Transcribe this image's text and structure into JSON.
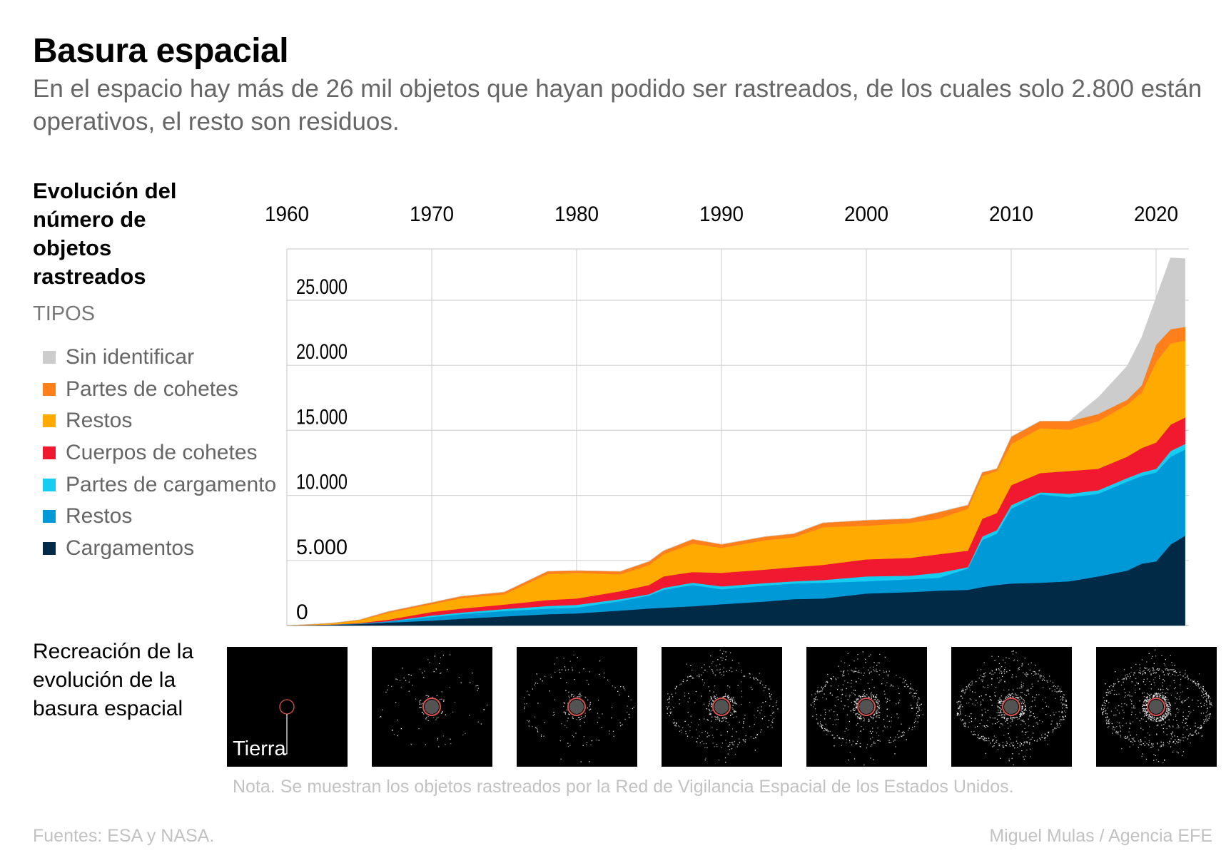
{
  "header": {
    "title": "Basura espacial",
    "subtitle": "En el espacio hay más de 26 mil objetos que hayan podido ser rastreados, de los cuales solo 2.800 están operativos, el resto son residuos."
  },
  "side": {
    "title_lines": [
      "Evolución del",
      "número de",
      "objetos",
      "rastreados"
    ],
    "legend_heading": "TIPOS"
  },
  "chart_data": {
    "type": "area",
    "stacked": true,
    "title": "Evolución del número de objetos rastreados",
    "xlabel": "",
    "ylabel": "",
    "xlim": [
      1960,
      2022
    ],
    "ylim": [
      0,
      28900
    ],
    "x_ticks": [
      1960,
      1970,
      1980,
      1990,
      2000,
      2010,
      2020
    ],
    "x_tick_labels": [
      "1960",
      "1970",
      "1980",
      "1990",
      "2000",
      "2010",
      "2020"
    ],
    "x_axis_position": "top",
    "y_ticks": [
      0,
      5000,
      10000,
      15000,
      20000,
      25000
    ],
    "y_tick_labels": [
      "0",
      "5.000",
      "10.000",
      "15.000",
      "20.000",
      "25.000"
    ],
    "grid": true,
    "legend_position": "left",
    "x": [
      1960,
      1963,
      1965,
      1967,
      1970,
      1972,
      1975,
      1978,
      1980,
      1983,
      1985,
      1986,
      1988,
      1990,
      1993,
      1995,
      1997,
      2000,
      2003,
      2005,
      2007,
      2008,
      2009,
      2010,
      2012,
      2014,
      2016,
      2018,
      2019,
      2020,
      2021,
      2022
    ],
    "series": [
      {
        "name": "Cargamentos",
        "color": "#002a45",
        "values": [
          0,
          50,
          120,
          230,
          380,
          520,
          700,
          870,
          930,
          1150,
          1310,
          1370,
          1480,
          1640,
          1850,
          2030,
          2080,
          2460,
          2570,
          2680,
          2740,
          2960,
          3120,
          3230,
          3290,
          3400,
          3780,
          4220,
          4760,
          4930,
          6240,
          6900
        ]
      },
      {
        "name": "Restos",
        "color": "#0099d8",
        "values": [
          0,
          10,
          30,
          80,
          270,
          350,
          420,
          430,
          440,
          730,
          990,
          1370,
          1640,
          1150,
          1230,
          1200,
          1210,
          940,
          990,
          990,
          1640,
          3610,
          3940,
          5750,
          6790,
          6460,
          6350,
          6840,
          6740,
          6840,
          6740,
          6630
        ]
      },
      {
        "name": "Partes de cargamento",
        "color": "#14cdf0",
        "values": [
          0,
          5,
          10,
          20,
          120,
          130,
          150,
          200,
          220,
          150,
          110,
          160,
          170,
          220,
          180,
          170,
          210,
          380,
          270,
          380,
          110,
          270,
          280,
          280,
          160,
          270,
          270,
          280,
          270,
          280,
          440,
          430
        ]
      },
      {
        "name": "Cuerpos de cohetes",
        "color": "#f0192f",
        "values": [
          0,
          10,
          40,
          120,
          270,
          300,
          340,
          460,
          490,
          600,
          710,
          880,
          820,
          1040,
          1040,
          1090,
          1160,
          1310,
          1370,
          1430,
          1260,
          1370,
          1310,
          1530,
          1480,
          1750,
          1650,
          1640,
          1870,
          2020,
          2020,
          2030
        ]
      },
      {
        "name": "Restos",
        "color": "#ffaa00",
        "values": [
          0,
          80,
          200,
          530,
          600,
          800,
          790,
          2000,
          1970,
          1300,
          1540,
          1700,
          2190,
          1920,
          2260,
          2300,
          2900,
          2580,
          2690,
          2730,
          3230,
          3290,
          3230,
          3170,
          3450,
          3180,
          3670,
          4000,
          4270,
          6190,
          6250,
          5910
        ]
      },
      {
        "name": "Partes de cohetes",
        "color": "#ff7f1a",
        "values": [
          0,
          20,
          40,
          100,
          130,
          150,
          170,
          210,
          170,
          230,
          270,
          270,
          330,
          270,
          270,
          270,
          330,
          430,
          320,
          500,
          280,
          270,
          170,
          550,
          550,
          660,
          540,
          380,
          550,
          1320,
          1090,
          1050
        ]
      },
      {
        "name": "Sin identificar",
        "color": "#cccccc",
        "values": [
          0,
          0,
          0,
          0,
          0,
          0,
          0,
          0,
          0,
          0,
          0,
          0,
          0,
          0,
          0,
          0,
          0,
          0,
          0,
          0,
          0,
          0,
          0,
          0,
          0,
          0,
          1260,
          2570,
          3660,
          3610,
          5480,
          5250
        ]
      }
    ]
  },
  "legend": {
    "items": [
      {
        "label": "Sin identificar",
        "color": "#cccccc"
      },
      {
        "label": "Partes de cohetes",
        "color": "#ff7f1a"
      },
      {
        "label": "Restos",
        "color": "#ffaa00"
      },
      {
        "label": "Cuerpos de cohetes",
        "color": "#f0192f"
      },
      {
        "label": "Partes de cargamento",
        "color": "#14cdf0"
      },
      {
        "label": "Restos",
        "color": "#0099d8"
      },
      {
        "label": "Cargamentos",
        "color": "#002a45"
      }
    ]
  },
  "recreation": {
    "title_lines": [
      "Recreación de la",
      "evolución de la",
      "basura espacial"
    ],
    "earth_label": "Tierra",
    "tiles": [
      {
        "density": 0
      },
      {
        "density": 0.12
      },
      {
        "density": 0.2
      },
      {
        "density": 0.45
      },
      {
        "density": 0.6
      },
      {
        "density": 0.8
      },
      {
        "density": 1.0
      }
    ],
    "earth_ring_color": "#d9534f"
  },
  "footer": {
    "note": "Nota. Se muestran los objetos rastreados por la Red de Vigilancia Espacial de los Estados Unidos.",
    "sources": "Fuentes: ESA y NASA.",
    "credit": "Miguel Mulas / Agencia EFE"
  }
}
